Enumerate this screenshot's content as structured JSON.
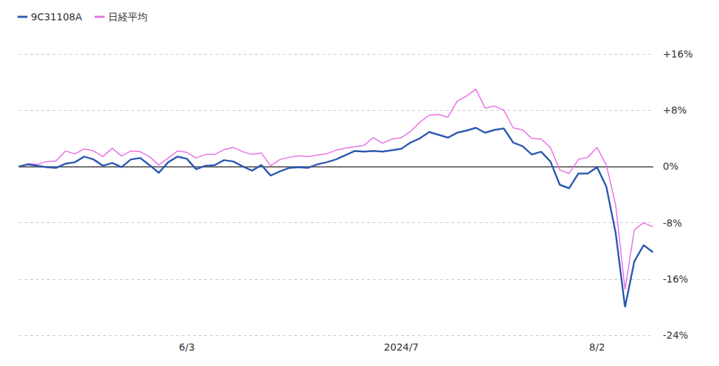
{
  "chart_data": {
    "type": "line",
    "categories": [
      null,
      null,
      null,
      null,
      null,
      null,
      null,
      null,
      null,
      null,
      null,
      null,
      null,
      null,
      null,
      null,
      null,
      null,
      "6/3",
      null,
      null,
      null,
      null,
      null,
      null,
      null,
      null,
      null,
      null,
      null,
      null,
      null,
      null,
      null,
      null,
      null,
      null,
      null,
      null,
      null,
      null,
      "2024/7",
      null,
      null,
      null,
      null,
      null,
      null,
      null,
      null,
      null,
      null,
      null,
      null,
      null,
      null,
      null,
      null,
      null,
      null,
      null,
      null,
      "8/2",
      null,
      null,
      null,
      null,
      null,
      null
    ],
    "series": [
      {
        "name": "9C31108A",
        "color": "#2b57b0",
        "values": [
          0,
          0.3,
          0.1,
          -0.1,
          -0.2,
          0.4,
          0.6,
          1.4,
          1.0,
          0.1,
          0.5,
          -0.1,
          1.0,
          1.2,
          0.2,
          -0.9,
          0.6,
          1.4,
          1.1,
          -0.4,
          0.1,
          0.2,
          0.9,
          0.7,
          0.0,
          -0.6,
          0.2,
          -1.3,
          -0.7,
          -0.2,
          -0.1,
          -0.2,
          0.3,
          0.6,
          1.0,
          1.6,
          2.2,
          2.1,
          2.2,
          2.1,
          2.3,
          2.5,
          3.4,
          4.0,
          4.9,
          4.5,
          4.1,
          4.8,
          5.1,
          5.5,
          4.8,
          5.2,
          5.4,
          3.4,
          2.9,
          1.7,
          2.1,
          0.7,
          -2.6,
          -3.1,
          -1.0,
          -1.0,
          -0.1,
          -2.9,
          -9.5,
          -20.0,
          -13.5,
          -11.2,
          -12.2
        ]
      },
      {
        "name": "日経平均",
        "color": "#e76de6",
        "values": [
          0,
          0.4,
          0.3,
          0.7,
          0.8,
          2.2,
          1.8,
          2.5,
          2.2,
          1.4,
          2.6,
          1.5,
          2.2,
          2.1,
          1.4,
          0.2,
          1.2,
          2.2,
          2.0,
          1.2,
          1.7,
          1.7,
          2.4,
          2.7,
          2.1,
          1.7,
          1.9,
          0.1,
          1.0,
          1.3,
          1.5,
          1.4,
          1.6,
          1.8,
          2.3,
          2.6,
          2.8,
          3.0,
          4.1,
          3.3,
          3.9,
          4.1,
          5.0,
          6.3,
          7.3,
          7.4,
          7.0,
          9.3,
          10.0,
          11.0,
          8.3,
          8.6,
          8.0,
          5.5,
          5.2,
          4.0,
          3.9,
          2.7,
          -0.5,
          -1.0,
          1.0,
          1.3,
          2.7,
          0.2,
          -5.5,
          -17.5,
          -9.0,
          -8.0,
          -8.6
        ]
      }
    ],
    "ylim": [
      -24,
      16
    ],
    "yticks": [
      {
        "value": -24,
        "label": "-24%"
      },
      {
        "value": -16,
        "label": "-16%"
      },
      {
        "value": -8,
        "label": "-8%"
      },
      {
        "value": 0,
        "label": "0%"
      },
      {
        "value": 8,
        "label": "+8%"
      },
      {
        "value": 16,
        "label": "+16%"
      }
    ],
    "grid": true,
    "legend": "top-left"
  }
}
